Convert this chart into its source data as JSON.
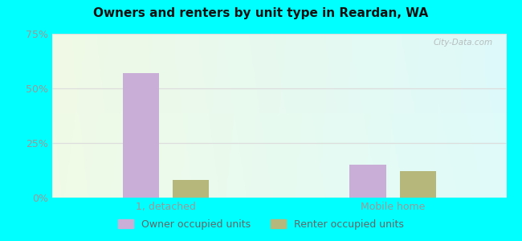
{
  "title": "Owners and renters by unit type in Reardan, WA",
  "categories": [
    "1, detached",
    "Mobile home"
  ],
  "owner_values": [
    57,
    15
  ],
  "renter_values": [
    8,
    12
  ],
  "owner_color": "#c9afd8",
  "renter_color": "#b5b87a",
  "ylim": [
    0,
    75
  ],
  "yticks": [
    0,
    25,
    50,
    75
  ],
  "yticklabels": [
    "0%",
    "25%",
    "50%",
    "75%"
  ],
  "legend_labels": [
    "Owner occupied units",
    "Renter occupied units"
  ],
  "outer_bg": "#00ffff",
  "bar_width": 0.32,
  "group_positions": [
    1.0,
    3.0
  ],
  "xlim": [
    0,
    4
  ],
  "watermark": "City-Data.com",
  "tick_color": "#999999",
  "grid_color": "#dddddd",
  "title_color": "#111111"
}
